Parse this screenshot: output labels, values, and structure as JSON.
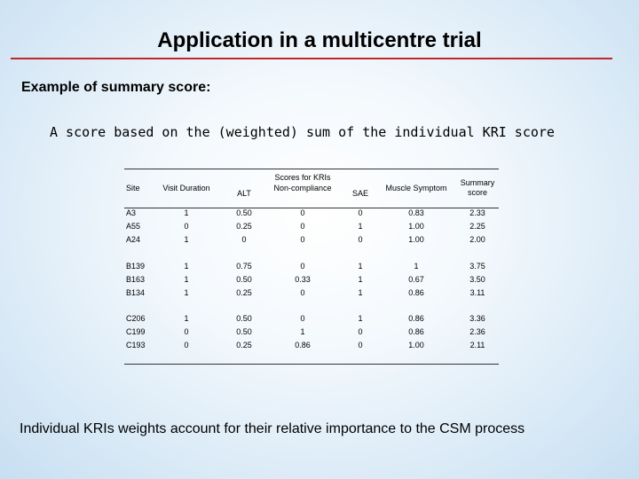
{
  "slide": {
    "title": "Application in a multicentre trial",
    "subtitle": "Example of summary score:",
    "description": "A score based on the (weighted) sum of the individual KRI score",
    "footer": "Individual KRIs weights account for their relative importance to the CSM process"
  },
  "table": {
    "group_header": "Scores for KRIs",
    "headers": [
      "Site",
      "Visit Duration",
      "ALT",
      "Non-compliance",
      "SAE",
      "Muscle Symptom",
      "Summary score"
    ],
    "groups": [
      [
        [
          "A3",
          "1",
          "0.50",
          "0",
          "0",
          "0.83",
          "2.33"
        ],
        [
          "A55",
          "0",
          "0.25",
          "0",
          "1",
          "1.00",
          "2.25"
        ],
        [
          "A24",
          "1",
          "0",
          "0",
          "0",
          "1.00",
          "2.00"
        ]
      ],
      [
        [
          "B139",
          "1",
          "0.75",
          "0",
          "1",
          "1",
          "3.75"
        ],
        [
          "B163",
          "1",
          "0.50",
          "0.33",
          "1",
          "0.67",
          "3.50"
        ],
        [
          "B134",
          "1",
          "0.25",
          "0",
          "1",
          "0.86",
          "3.11"
        ]
      ],
      [
        [
          "C206",
          "1",
          "0.50",
          "0",
          "1",
          "0.86",
          "3.36"
        ],
        [
          "C199",
          "0",
          "0.50",
          "1",
          "0",
          "0.86",
          "2.36"
        ],
        [
          "C193",
          "0",
          "0.25",
          "0.86",
          "0",
          "1.00",
          "2.11"
        ]
      ]
    ]
  }
}
